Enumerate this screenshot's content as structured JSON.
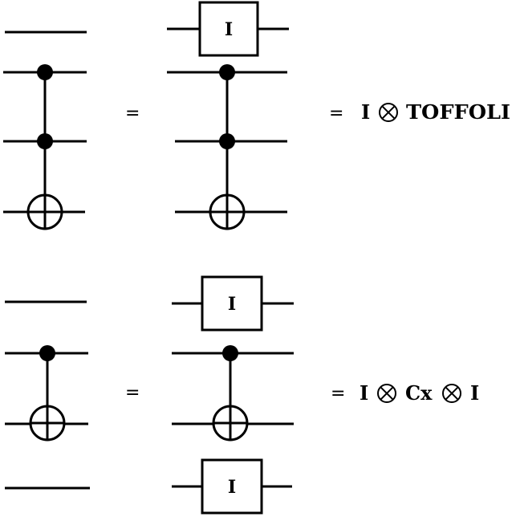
{
  "gate_labels": {
    "identity": "I"
  },
  "equals_sign": "=",
  "expressions": {
    "top": {
      "left_operand": "I",
      "right_operand": "TOFFOLI"
    },
    "bottom": {
      "left_operand": "I",
      "middle_operand": "Cx",
      "right_operand": "I"
    }
  }
}
